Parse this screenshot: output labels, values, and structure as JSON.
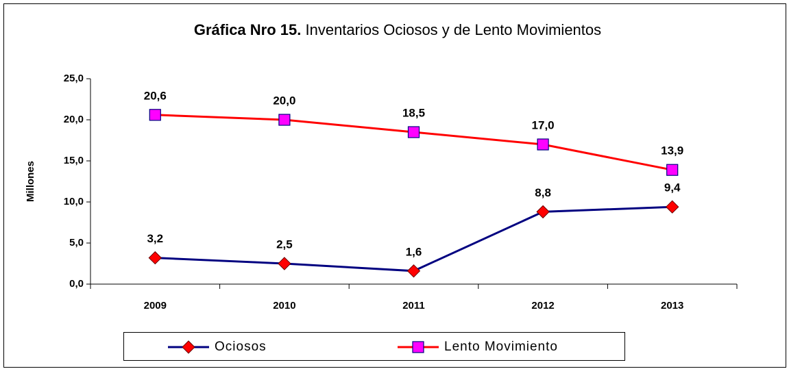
{
  "chart_data": {
    "type": "line",
    "title": [
      "Gráfica Nro 15.",
      "Inventarios Ociosos y de Lento  Movimientos"
    ],
    "y_label": "Millones",
    "categories": [
      "2009",
      "2010",
      "2011",
      "2012",
      "2013"
    ],
    "series": [
      {
        "name": "Ociosos",
        "color": "#000080",
        "marker_color": "#ff0000",
        "marker": "diamond",
        "values": [
          3.2,
          2.5,
          1.6,
          8.8,
          9.4
        ],
        "value_labels": [
          "3,2",
          "2,5",
          "1,6",
          "8,8",
          "9,4"
        ]
      },
      {
        "name": "Lento Movimiento",
        "color": "#ff0000",
        "marker_color": "#ff00ff",
        "marker": "square",
        "values": [
          20.6,
          20.0,
          18.5,
          17.0,
          13.9
        ],
        "value_labels": [
          "20,6",
          "20,0",
          "18,5",
          "17,0",
          "13,9"
        ]
      }
    ],
    "ylim": [
      0,
      25
    ],
    "yticks": [
      {
        "value": 0,
        "label": "0,0"
      },
      {
        "value": 5,
        "label": "5,0"
      },
      {
        "value": 10,
        "label": "10,0"
      },
      {
        "value": 15,
        "label": "15,0"
      },
      {
        "value": 20,
        "label": "20,0"
      },
      {
        "value": 25,
        "label": "25,0"
      }
    ],
    "legend": "bottom"
  }
}
